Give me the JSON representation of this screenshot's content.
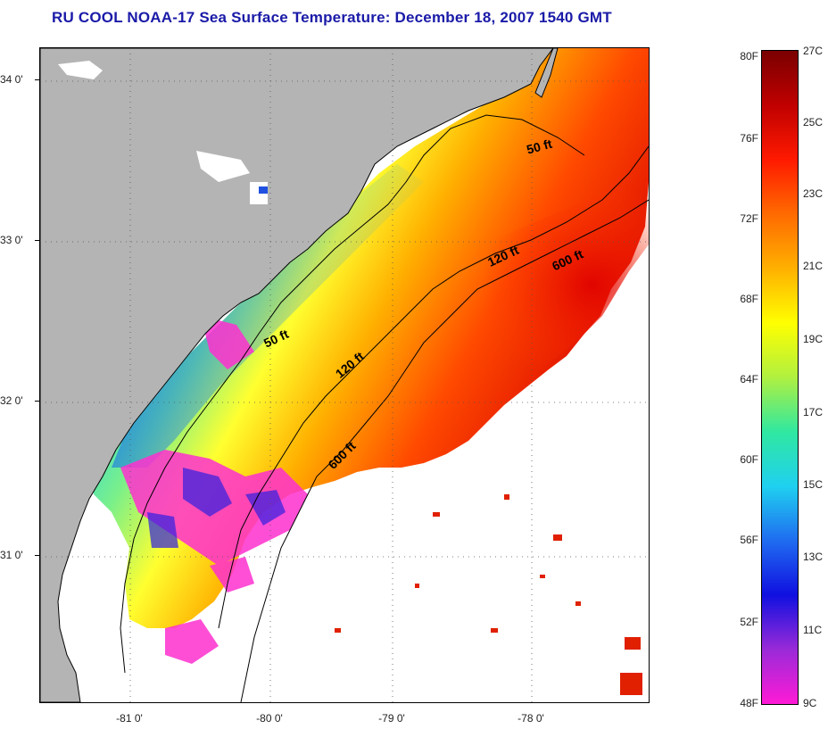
{
  "title": "RU COOL  NOAA-17  Sea Surface Temperature:  December 18, 2007 1540 GMT",
  "latitude_labels": [
    "34 0'",
    "33 0'",
    "32 0'",
    "31 0'"
  ],
  "longitude_labels": [
    "-81 0'",
    "-80 0'",
    "-79 0'",
    "-78 0'"
  ],
  "depth_labels": [
    "50 ft",
    "50 ft",
    "120 ft",
    "120 ft",
    "600 ft",
    "600 ft"
  ],
  "colorbar": {
    "fahrenheit": [
      "80F",
      "76F",
      "72F",
      "68F",
      "64F",
      "60F",
      "56F",
      "52F",
      "48F"
    ],
    "celsius": [
      "27C",
      "25C",
      "23C",
      "21C",
      "19C",
      "17C",
      "15C",
      "13C",
      "11C",
      "9C"
    ],
    "colors": [
      "#ff1ad6",
      "#9a2ad8",
      "#1010e0",
      "#1f6cf0",
      "#1fd0f0",
      "#30e8a0",
      "#b0f040",
      "#ffff00",
      "#ffb000",
      "#ff6a00",
      "#ff1a00",
      "#c00000",
      "#7a0000"
    ]
  },
  "colors": {
    "land": "#b4b4b4",
    "title": "#1a1aa8",
    "cloud": "#ffffff"
  }
}
